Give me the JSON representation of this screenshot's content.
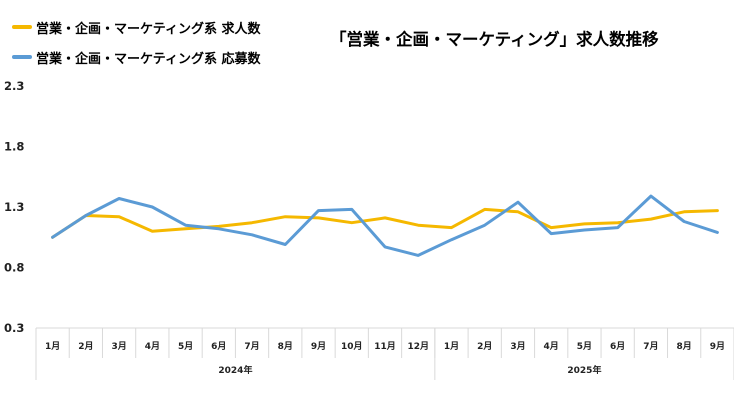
{
  "chart_data": {
    "type": "line",
    "title": "「営業・企画・マーケティング」求人数推移",
    "xlabel": "",
    "ylabel": "",
    "ylim": [
      0.3,
      2.3
    ],
    "yticks": [
      "2.3",
      "1.8",
      "1.3",
      "0.8",
      "0.3"
    ],
    "categories": [
      "1月",
      "2月",
      "3月",
      "4月",
      "5月",
      "6月",
      "7月",
      "8月",
      "9月",
      "10月",
      "11月",
      "12月",
      "1月",
      "2月",
      "3月",
      "4月",
      "5月",
      "6月",
      "7月",
      "8月",
      "9月"
    ],
    "groups": [
      {
        "label": "2024年",
        "count": 12
      },
      {
        "label": "2025年",
        "count": 9
      }
    ],
    "legend_position": "top-left",
    "grid": false,
    "series": [
      {
        "name": "営業・企画・マーケティング系 求人数",
        "color": "#f5b800",
        "values": [
          1.05,
          1.23,
          1.22,
          1.1,
          1.12,
          1.14,
          1.17,
          1.22,
          1.21,
          1.17,
          1.21,
          1.15,
          1.13,
          1.28,
          1.26,
          1.13,
          1.16,
          1.17,
          1.2,
          1.26,
          1.27
        ]
      },
      {
        "name": "営業・企画・マーケティング系 応募数",
        "color": "#5b9bd5",
        "values": [
          1.05,
          1.23,
          1.37,
          1.3,
          1.15,
          1.12,
          1.07,
          0.99,
          1.27,
          1.28,
          0.97,
          0.9,
          1.03,
          1.15,
          1.34,
          1.08,
          1.11,
          1.13,
          1.39,
          1.18,
          1.09
        ]
      }
    ]
  }
}
